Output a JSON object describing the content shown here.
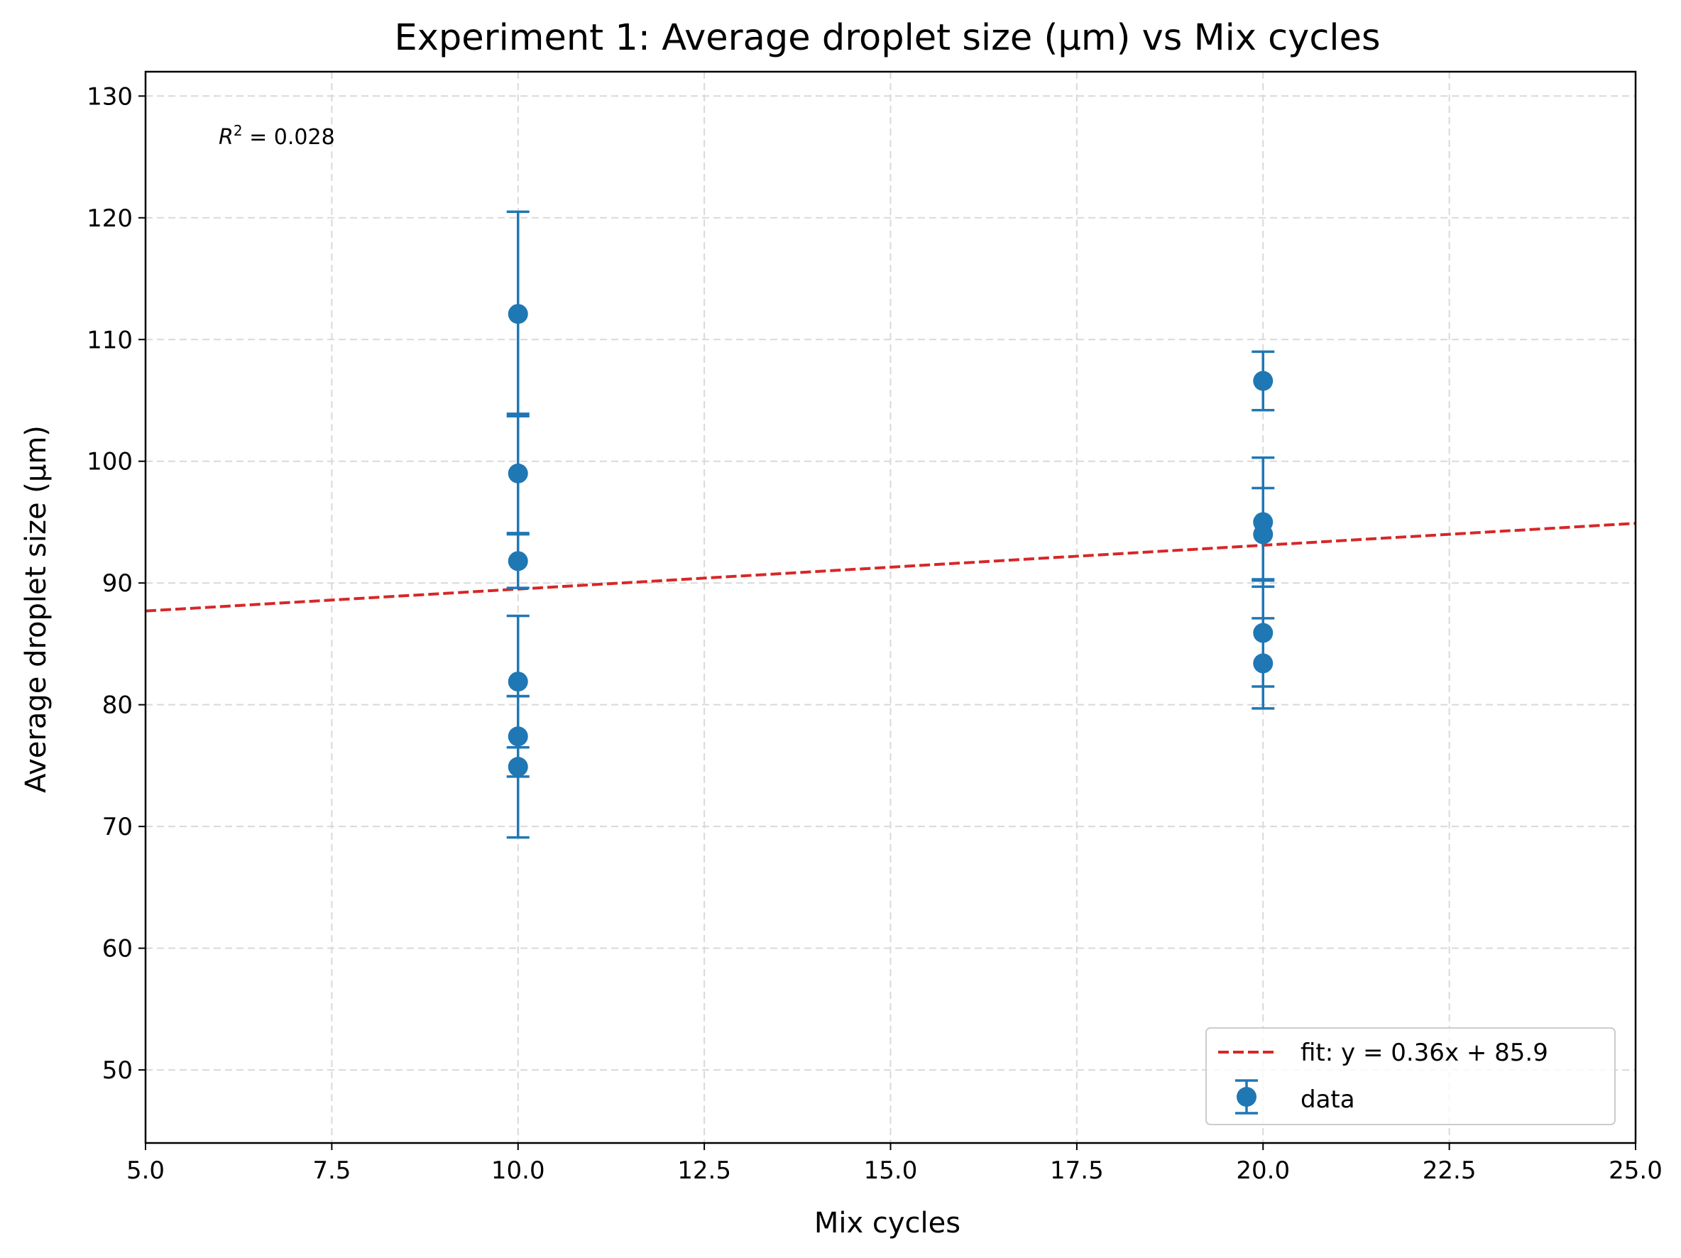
{
  "chart_data": {
    "type": "scatter",
    "title": "Experiment 1: Average droplet size (µm) vs Mix cycles",
    "xlabel": "Mix cycles",
    "ylabel": "Average droplet size (µm)",
    "xlim": [
      5.0,
      25.0
    ],
    "ylim": [
      44.0,
      132.0
    ],
    "xticks": [
      "5.0",
      "7.5",
      "10.0",
      "12.5",
      "15.0",
      "17.5",
      "20.0",
      "22.5",
      "25.0"
    ],
    "xtick_values": [
      5.0,
      7.5,
      10.0,
      12.5,
      15.0,
      17.5,
      20.0,
      22.5,
      25.0
    ],
    "yticks": [
      "50",
      "60",
      "70",
      "80",
      "90",
      "100",
      "110",
      "120",
      "130"
    ],
    "ytick_values": [
      50,
      60,
      70,
      80,
      90,
      100,
      110,
      120,
      130
    ],
    "grid": true,
    "legend_position": "lower-right",
    "annotation": {
      "base": "R",
      "sup": "2",
      "rest": " = 0.028"
    },
    "colors": {
      "data": "#1f77b4",
      "fit": "#d62728",
      "grid": "#d9d9d9"
    },
    "series": [
      {
        "name": "data",
        "kind": "errorbar",
        "points": [
          {
            "x": 10,
            "y": 112.1,
            "err": 8.4
          },
          {
            "x": 10,
            "y": 99.0,
            "err": 4.9
          },
          {
            "x": 10,
            "y": 91.8,
            "err": 2.2
          },
          {
            "x": 10,
            "y": 81.9,
            "err": 5.4
          },
          {
            "x": 10,
            "y": 77.4,
            "err": 3.3
          },
          {
            "x": 10,
            "y": 74.9,
            "err": 5.8
          },
          {
            "x": 20,
            "y": 106.6,
            "err": 2.4
          },
          {
            "x": 20,
            "y": 95.0,
            "err": 5.3
          },
          {
            "x": 20,
            "y": 94.0,
            "err": 3.8
          },
          {
            "x": 20,
            "y": 85.9,
            "err": 4.4
          },
          {
            "x": 20,
            "y": 83.4,
            "err": 3.7
          }
        ]
      },
      {
        "name": "fit: y = 0.36x + 85.9",
        "kind": "line",
        "slope": 0.36,
        "intercept": 85.9,
        "x": [
          5.0,
          25.0
        ],
        "y": [
          87.7,
          94.9
        ]
      }
    ]
  }
}
